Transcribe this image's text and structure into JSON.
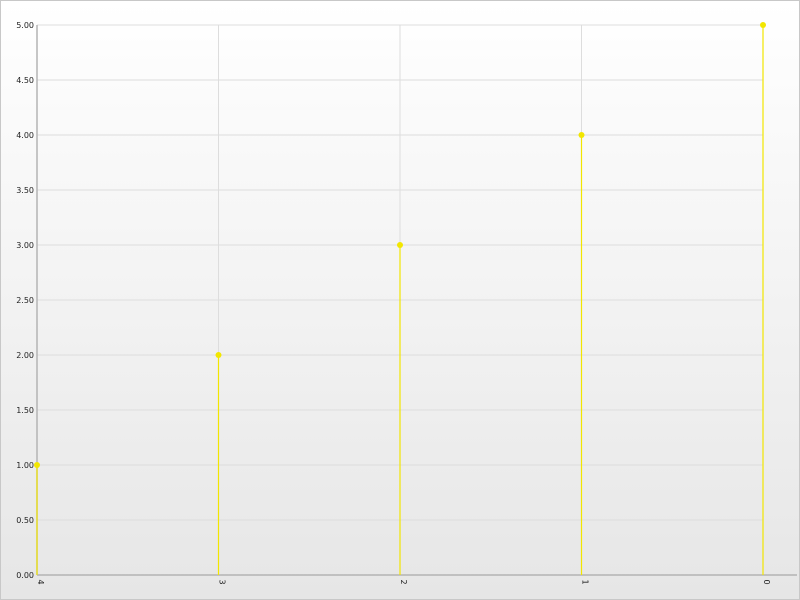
{
  "chart_data": {
    "type": "line",
    "style": "stem",
    "categories": [
      "4",
      "3",
      "2",
      "1",
      "0"
    ],
    "values": [
      1,
      2,
      3,
      4,
      5
    ],
    "ylim": [
      0,
      5
    ],
    "yticks": [
      "0.00",
      "0.50",
      "1.00",
      "1.50",
      "2.00",
      "2.50",
      "3.00",
      "3.50",
      "4.00",
      "4.50",
      "5.00"
    ],
    "x_tick_rotation": "vertical",
    "grid": true,
    "legend": "none",
    "title": "",
    "xlabel": "",
    "ylabel": ""
  },
  "colors": {
    "series": "#f2e600",
    "grid": "#dddddd",
    "axis": "#b4b4b4",
    "text": "#222222"
  }
}
